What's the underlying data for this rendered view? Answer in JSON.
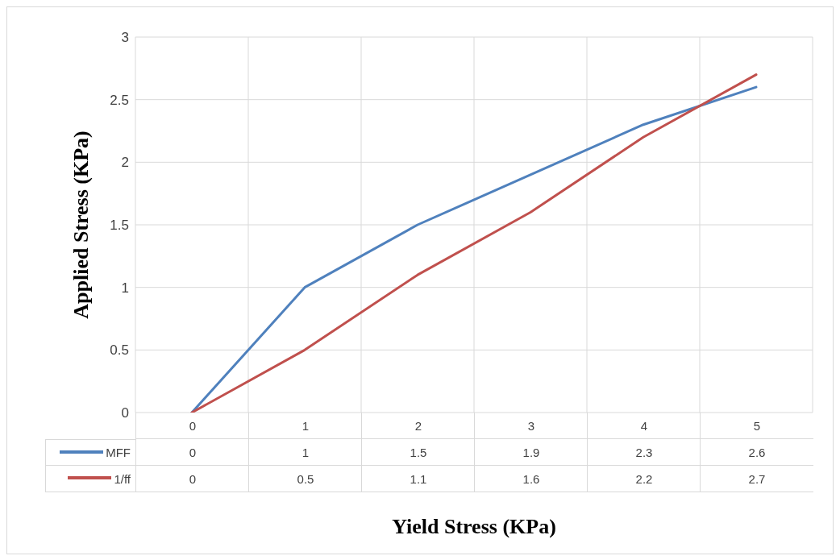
{
  "chart_data": {
    "type": "line",
    "xlabel": "Yield Stress (KPa)",
    "ylabel": "Applied Stress (KPa)",
    "categories": [
      "0",
      "1",
      "2",
      "3",
      "4",
      "5"
    ],
    "series": [
      {
        "name": "MFF",
        "color": "#4f81bd",
        "values": [
          0,
          1,
          1.5,
          1.9,
          2.3,
          2.6
        ]
      },
      {
        "name": "1/ff",
        "color": "#c0504d",
        "values": [
          0,
          0.5,
          1.1,
          1.6,
          2.2,
          2.7
        ]
      }
    ],
    "ylim": [
      0,
      3
    ],
    "yticks": [
      0,
      0.5,
      1,
      1.5,
      2,
      2.5,
      3
    ],
    "grid": true,
    "legend": "bottom",
    "data_labels": true,
    "marker": "none",
    "line_style": "solid"
  }
}
